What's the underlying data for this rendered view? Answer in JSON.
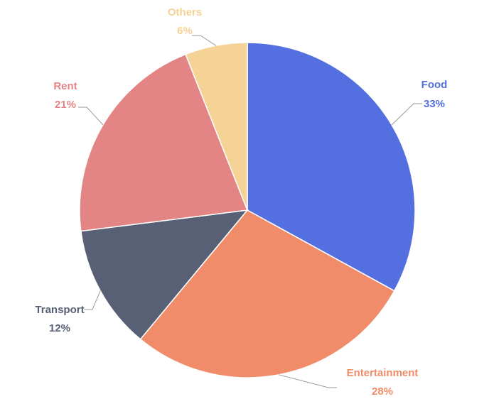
{
  "chart_data": {
    "type": "pie",
    "title": "",
    "start_angle_deg": 0,
    "direction": "clockwise",
    "slices": [
      {
        "name": "Food",
        "value": 33,
        "label": "33%",
        "color": "#5470e0"
      },
      {
        "name": "Entertainment",
        "value": 28,
        "label": "28%",
        "color": "#f08c69"
      },
      {
        "name": "Transport",
        "value": 12,
        "label": "12%",
        "color": "#586075"
      },
      {
        "name": "Rent",
        "value": 21,
        "label": "21%",
        "color": "#e48585"
      },
      {
        "name": "Others",
        "value": 6,
        "label": "6%",
        "color": "#f5d295"
      }
    ],
    "legend": "none",
    "label_placement": "outside-with-leader-lines"
  }
}
